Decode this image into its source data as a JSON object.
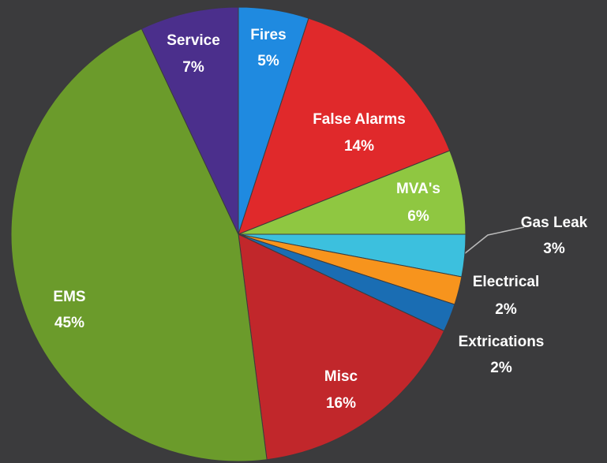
{
  "chart_data": {
    "type": "pie",
    "categories": [
      "Fires",
      "False Alarms",
      "MVA's",
      "Gas Leak",
      "Electrical",
      "Extrications",
      "Misc",
      "EMS",
      "Service"
    ],
    "values": [
      5,
      14,
      6,
      3,
      2,
      2,
      16,
      45,
      7
    ],
    "value_labels": [
      "5%",
      "14%",
      "6%",
      "3%",
      "2%",
      "2%",
      "16%",
      "45%",
      "7%"
    ],
    "colors": [
      "#1f8ae0",
      "#e0292b",
      "#8fc741",
      "#3cc0de",
      "#f7941d",
      "#1a6db3",
      "#c1272b",
      "#6b9b2b",
      "#4b2f8c"
    ]
  }
}
